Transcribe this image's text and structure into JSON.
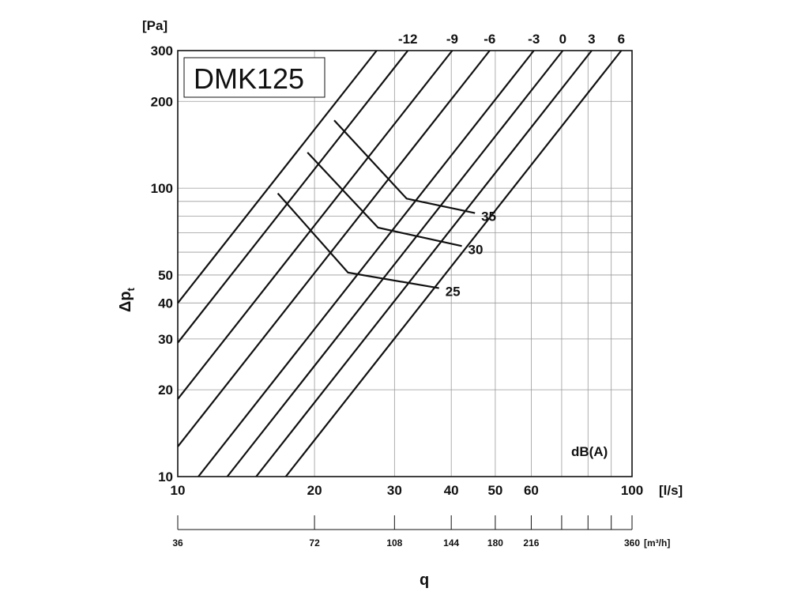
{
  "chart_data": {
    "type": "line",
    "model_label": "DMK125",
    "y_unit": "[Pa]",
    "y_symbol": "Δp",
    "y_symbol_sub": "t",
    "x_unit": "[l/s]",
    "x2_unit": "[m³/h]",
    "x_axis_title": "q",
    "db_label": "dB(A)",
    "x_scale": "log",
    "y_scale": "log",
    "xlim": [
      10,
      100
    ],
    "ylim": [
      10,
      300
    ],
    "grid": true,
    "x_grid": [
      10,
      20,
      30,
      40,
      50,
      60,
      70,
      80,
      90,
      100
    ],
    "y_grid": [
      10,
      20,
      30,
      40,
      50,
      60,
      70,
      80,
      90,
      100,
      200,
      300
    ],
    "x_tick_labels": [
      {
        "value": 10,
        "label": "10"
      },
      {
        "value": 20,
        "label": "20"
      },
      {
        "value": 30,
        "label": "30"
      },
      {
        "value": 40,
        "label": "40"
      },
      {
        "value": 50,
        "label": "50"
      },
      {
        "value": 60,
        "label": "60"
      },
      {
        "value": 100,
        "label": "100"
      }
    ],
    "y_tick_labels": [
      {
        "value": 10,
        "label": "10"
      },
      {
        "value": 20,
        "label": "20"
      },
      {
        "value": 30,
        "label": "30"
      },
      {
        "value": 40,
        "label": "40"
      },
      {
        "value": 50,
        "label": "50"
      },
      {
        "value": 100,
        "label": "100"
      },
      {
        "value": 200,
        "label": "200"
      },
      {
        "value": 300,
        "label": "300"
      }
    ],
    "m3h_ticks": [
      {
        "value": 36,
        "label": "36"
      },
      {
        "value": 72,
        "label": "72"
      },
      {
        "value": 108,
        "label": "108"
      },
      {
        "value": 144,
        "label": "144"
      },
      {
        "value": 180,
        "label": "180"
      },
      {
        "value": 216,
        "label": "216"
      },
      {
        "value": 252,
        "label": ""
      },
      {
        "value": 288,
        "label": ""
      },
      {
        "value": 324,
        "label": ""
      },
      {
        "value": 360,
        "label": "360"
      }
    ],
    "isolines": [
      {
        "label": "-12",
        "x_at_top": 32.1
      },
      {
        "label": "-9",
        "x_at_top": 40.2
      },
      {
        "label": "-6",
        "x_at_top": 48.6
      },
      {
        "label": "-3",
        "x_at_top": 60.8
      },
      {
        "label": "0",
        "x_at_top": 70.4
      },
      {
        "label": "3",
        "x_at_top": 81.5
      },
      {
        "label": "6",
        "x_at_top": 94.7
      },
      {
        "label": "",
        "x_at_top": 27.4
      }
    ],
    "isoline_slope": 2,
    "sound_curves": [
      {
        "label": "35",
        "points": [
          [
            22.1,
            172
          ],
          [
            31.9,
            92
          ],
          [
            45.1,
            82
          ]
        ]
      },
      {
        "label": "30",
        "points": [
          [
            19.3,
            133
          ],
          [
            27.6,
            73
          ],
          [
            42.2,
            63
          ]
        ]
      },
      {
        "label": "25",
        "points": [
          [
            16.6,
            96
          ],
          [
            23.7,
            51
          ],
          [
            37.6,
            45
          ]
        ]
      }
    ]
  }
}
